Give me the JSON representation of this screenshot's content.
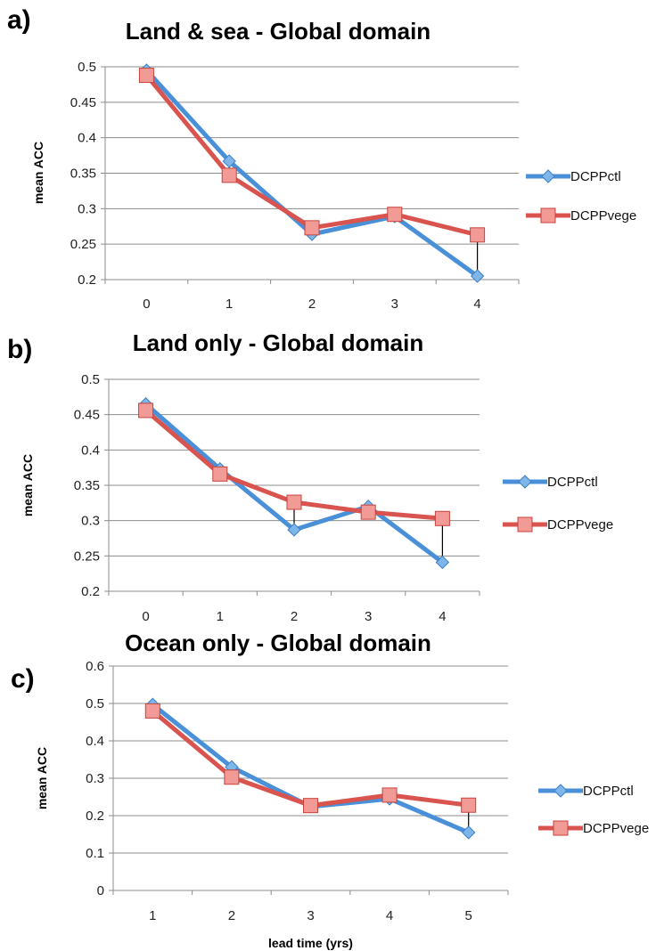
{
  "chart_data": [
    {
      "type": "line",
      "panel_label": "a)",
      "title": "Land & sea - Global domain",
      "xlabel": "",
      "ylabel": "mean ACC",
      "categories": [
        "0",
        "1",
        "2",
        "3",
        "4"
      ],
      "ylim": [
        0.2,
        0.5
      ],
      "yticks": [
        "0.2",
        "0.25",
        "0.3",
        "0.35",
        "0.4",
        "0.45",
        "0.5"
      ],
      "grid": true,
      "legend_position": "right",
      "series": [
        {
          "name": "DCPPctl",
          "color": "#4a90d9",
          "marker": "diamond",
          "values": [
            0.495,
            0.367,
            0.264,
            0.289,
            0.205
          ]
        },
        {
          "name": "DCPPvege",
          "color": "#d9534f",
          "marker": "square",
          "values": [
            0.488,
            0.347,
            0.273,
            0.292,
            0.263
          ]
        }
      ]
    },
    {
      "type": "line",
      "panel_label": "b)",
      "title": "Land only - Global domain",
      "xlabel": "",
      "ylabel": "mean ACC",
      "categories": [
        "0",
        "1",
        "2",
        "3",
        "4"
      ],
      "ylim": [
        0.2,
        0.5
      ],
      "yticks": [
        "0.2",
        "0.25",
        "0.3",
        "0.35",
        "0.4",
        "0.45",
        "0.5"
      ],
      "grid": true,
      "legend_position": "right",
      "series": [
        {
          "name": "DCPPctl",
          "color": "#4a90d9",
          "marker": "diamond",
          "values": [
            0.465,
            0.373,
            0.287,
            0.32,
            0.241
          ]
        },
        {
          "name": "DCPPvege",
          "color": "#d9534f",
          "marker": "square",
          "values": [
            0.456,
            0.366,
            0.326,
            0.312,
            0.303
          ]
        }
      ]
    },
    {
      "type": "line",
      "panel_label": "c)",
      "title": "Ocean only - Global domain",
      "xlabel": "lead time (yrs)",
      "ylabel": "mean ACC",
      "categories": [
        "1",
        "2",
        "3",
        "4",
        "5"
      ],
      "ylim": [
        0,
        0.6
      ],
      "yticks": [
        "0",
        "0.1",
        "0.2",
        "0.3",
        "0.4",
        "0.5",
        "0.6"
      ],
      "grid": true,
      "legend_position": "right",
      "series": [
        {
          "name": "DCPPctl",
          "color": "#4a90d9",
          "marker": "diamond",
          "values": [
            0.497,
            0.33,
            0.224,
            0.245,
            0.155
          ]
        },
        {
          "name": "DCPPvege",
          "color": "#d9534f",
          "marker": "square",
          "values": [
            0.48,
            0.303,
            0.227,
            0.255,
            0.228
          ]
        }
      ]
    }
  ]
}
